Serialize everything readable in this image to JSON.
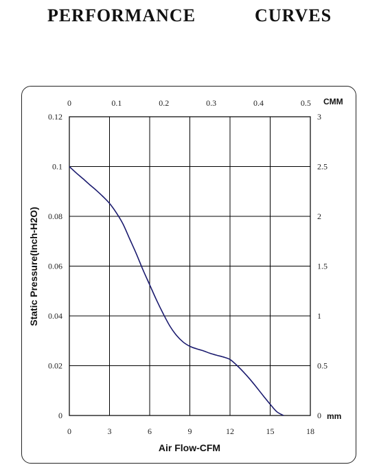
{
  "page": {
    "title": "PERFORMANCE    CURVES"
  },
  "chart_data": {
    "type": "line",
    "x": [
      0,
      0.5,
      1,
      1.5,
      2,
      2.5,
      3,
      3.5,
      4,
      4.5,
      5,
      5.5,
      6,
      6.5,
      7,
      7.5,
      8,
      8.5,
      9,
      9.5,
      10,
      10.5,
      11,
      11.5,
      12,
      12.5,
      13,
      13.5,
      14,
      14.5,
      15,
      15.5,
      16
    ],
    "series": [
      {
        "values": [
          0.1,
          0.0975,
          0.0952,
          0.0928,
          0.0905,
          0.088,
          0.0852,
          0.0815,
          0.077,
          0.071,
          0.065,
          0.0585,
          0.0525,
          0.0465,
          0.041,
          0.036,
          0.0322,
          0.0295,
          0.0278,
          0.0268,
          0.026,
          0.025,
          0.0242,
          0.0235,
          0.0225,
          0.0202,
          0.0175,
          0.0145,
          0.0112,
          0.0078,
          0.0045,
          0.0015,
          0
        ],
        "color": "#1a1a6e"
      }
    ],
    "xlabel": "Air Flow-CFM",
    "ylabel": "Static Pressure(Inch-H2O)",
    "xlim": [
      0,
      18
    ],
    "ylim": [
      0,
      0.12
    ],
    "x_ticks": [
      "0",
      "3",
      "6",
      "9",
      "12",
      "15",
      "18"
    ],
    "y_ticks": [
      "0",
      "0.02",
      "0.04",
      "0.06",
      "0.08",
      "0.1",
      "0.12"
    ],
    "top_axis": {
      "unit": "CMM",
      "range": [
        0,
        0.5
      ],
      "ticks": [
        "0",
        "0.1",
        "0.2",
        "0.3",
        "0.4",
        "0.5"
      ]
    },
    "right_axis": {
      "unit": "mm",
      "range": [
        0,
        3
      ],
      "ticks": [
        "0",
        "0.5",
        "1",
        "1.5",
        "2",
        "2.5",
        "3"
      ]
    },
    "grid": true,
    "grid_color": "#000000",
    "line_color": "#1a1a6e"
  }
}
